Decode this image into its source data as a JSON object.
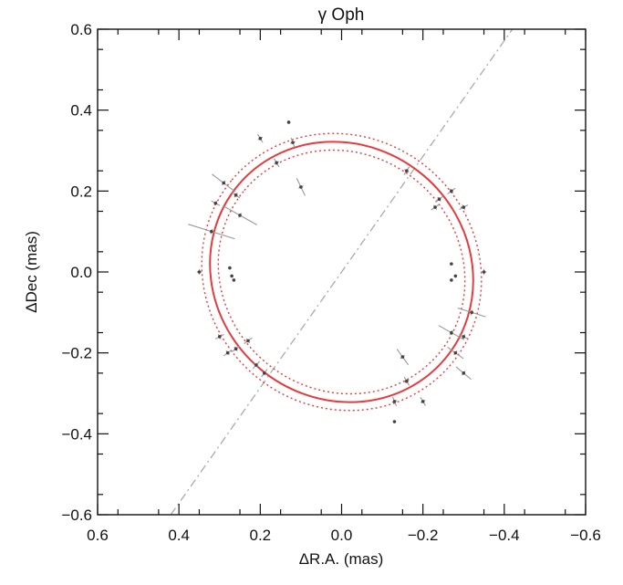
{
  "chart_data": {
    "type": "scatter",
    "title": "γ Oph",
    "xlabel": "ΔR.A. (mas)",
    "ylabel": "ΔDec (mas)",
    "xlim": [
      0.6,
      -0.6
    ],
    "ylim": [
      -0.6,
      0.6
    ],
    "x_ticks": [
      "0.6",
      "0.4",
      "0.2",
      "0.0",
      "−0.2",
      "−0.4",
      "−0.6"
    ],
    "y_ticks": [
      "0.6",
      "0.4",
      "0.2",
      "0.0",
      "−0.2",
      "−0.4",
      "−0.6"
    ],
    "grid": false,
    "x_tick_values": [
      0.6,
      0.4,
      0.2,
      0.0,
      -0.2,
      -0.4,
      -0.6
    ],
    "y_tick_values": [
      0.6,
      0.4,
      0.2,
      0.0,
      -0.2,
      -0.4,
      -0.6
    ],
    "fit_ellipse": {
      "center": [
        0.0,
        0.0
      ],
      "semi_major": 0.332,
      "semi_minor": 0.313,
      "angle_deg": 140,
      "color": "#e8393c"
    },
    "ellipse_bounds": [
      {
        "center": [
          0.0,
          0.0
        ],
        "semi_major": 0.352,
        "semi_minor": 0.334,
        "angle_deg": 140
      },
      {
        "center": [
          0.0,
          0.0
        ],
        "semi_major": 0.312,
        "semi_minor": 0.292,
        "angle_deg": 140
      }
    ],
    "orientation_line": {
      "from": [
        0.42,
        -0.6
      ],
      "to": [
        -0.42,
        0.6
      ],
      "color": "#aaaaaa"
    },
    "points": [
      {
        "x": 0.13,
        "y": 0.37,
        "sx": 0.0,
        "sy": 0.0
      },
      {
        "x": 0.12,
        "y": 0.32,
        "sx": 0.01,
        "sy": 0.01
      },
      {
        "x": 0.2,
        "y": 0.33,
        "sx": 0.01,
        "sy": 0.01
      },
      {
        "x": 0.16,
        "y": 0.27,
        "sx": 0.01,
        "sy": 0.01
      },
      {
        "x": 0.1,
        "y": 0.21,
        "sx": 0.02,
        "sy": 0.02
      },
      {
        "x": 0.29,
        "y": 0.22,
        "sx": 0.03,
        "sy": 0.03
      },
      {
        "x": 0.26,
        "y": 0.19,
        "sx": 0.01,
        "sy": 0.01
      },
      {
        "x": 0.31,
        "y": 0.17,
        "sx": 0.01,
        "sy": 0.01
      },
      {
        "x": 0.25,
        "y": 0.14,
        "sx": 0.04,
        "sy": 0.04
      },
      {
        "x": 0.32,
        "y": 0.1,
        "sx": 0.05,
        "sy": 0.05
      },
      {
        "x": 0.35,
        "y": 0.0,
        "sx": 0.01,
        "sy": 0.0
      },
      {
        "x": 0.275,
        "y": 0.01,
        "sx": 0.0,
        "sy": 0.0
      },
      {
        "x": 0.27,
        "y": -0.01,
        "sx": 0.0,
        "sy": 0.0
      },
      {
        "x": 0.265,
        "y": -0.02,
        "sx": 0.0,
        "sy": 0.0
      },
      {
        "x": 0.3,
        "y": -0.16,
        "sx": 0.01,
        "sy": 0.01
      },
      {
        "x": 0.26,
        "y": -0.19,
        "sx": 0.01,
        "sy": 0.01
      },
      {
        "x": 0.28,
        "y": -0.2,
        "sx": 0.01,
        "sy": 0.01
      },
      {
        "x": 0.23,
        "y": -0.17,
        "sx": 0.01,
        "sy": 0.01
      },
      {
        "x": 0.21,
        "y": -0.23,
        "sx": 0.01,
        "sy": 0.01
      },
      {
        "x": 0.19,
        "y": -0.25,
        "sx": 0.01,
        "sy": 0.01
      },
      {
        "x": -0.16,
        "y": 0.25,
        "sx": 0.01,
        "sy": 0.01
      },
      {
        "x": -0.24,
        "y": 0.18,
        "sx": 0.01,
        "sy": 0.01
      },
      {
        "x": -0.27,
        "y": 0.2,
        "sx": 0.01,
        "sy": 0.01
      },
      {
        "x": -0.23,
        "y": 0.16,
        "sx": 0.01,
        "sy": 0.01
      },
      {
        "x": -0.3,
        "y": 0.16,
        "sx": 0.01,
        "sy": 0.01
      },
      {
        "x": -0.27,
        "y": 0.02,
        "sx": 0.0,
        "sy": 0.0
      },
      {
        "x": -0.28,
        "y": -0.01,
        "sx": 0.0,
        "sy": 0.0
      },
      {
        "x": -0.27,
        "y": -0.02,
        "sx": 0.0,
        "sy": 0.0
      },
      {
        "x": -0.35,
        "y": 0.0,
        "sx": 0.01,
        "sy": 0.0
      },
      {
        "x": -0.32,
        "y": -0.1,
        "sx": 0.03,
        "sy": 0.03
      },
      {
        "x": -0.27,
        "y": -0.15,
        "sx": 0.03,
        "sy": 0.03
      },
      {
        "x": -0.3,
        "y": -0.16,
        "sx": 0.01,
        "sy": 0.01
      },
      {
        "x": -0.28,
        "y": -0.2,
        "sx": 0.02,
        "sy": 0.02
      },
      {
        "x": -0.3,
        "y": -0.25,
        "sx": 0.02,
        "sy": 0.02
      },
      {
        "x": -0.15,
        "y": -0.21,
        "sx": 0.02,
        "sy": 0.02
      },
      {
        "x": -0.16,
        "y": -0.27,
        "sx": 0.01,
        "sy": 0.01
      },
      {
        "x": -0.13,
        "y": -0.32,
        "sx": 0.01,
        "sy": 0.01
      },
      {
        "x": -0.2,
        "y": -0.32,
        "sx": 0.01,
        "sy": 0.01
      },
      {
        "x": -0.13,
        "y": -0.37,
        "sx": 0.0,
        "sy": 0.0
      }
    ]
  }
}
